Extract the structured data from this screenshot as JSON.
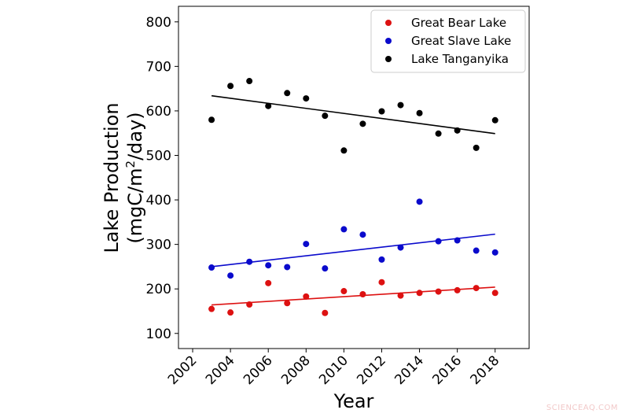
{
  "chart_data": {
    "type": "scatter",
    "title": "",
    "xlabel": "Year",
    "ylabel_line1": "Lake Production",
    "ylabel_line2": "(mgC/m",
    "ylabel_sup": "2",
    "ylabel_line2_end": "/day)",
    "xlim": [
      2001.25,
      2019.8
    ],
    "ylim": [
      66,
      835
    ],
    "xticks": [
      2002,
      2004,
      2006,
      2008,
      2010,
      2012,
      2014,
      2016,
      2018
    ],
    "yticks": [
      100,
      200,
      300,
      400,
      500,
      600,
      700,
      800
    ],
    "grid": false,
    "legend_placement": "top-right",
    "x": [
      2003,
      2004,
      2005,
      2006,
      2007,
      2008,
      2009,
      2010,
      2011,
      2012,
      2013,
      2014,
      2015,
      2016,
      2017,
      2018
    ],
    "series": [
      {
        "name": "Great Bear Lake",
        "color": "#dd1111",
        "values": [
          155,
          147,
          165,
          213,
          168,
          183,
          146,
          195,
          188,
          215,
          185,
          191,
          194,
          197,
          202,
          191
        ],
        "trend": [
          [
            2003,
            164
          ],
          [
            2018,
            204
          ]
        ]
      },
      {
        "name": "Great Slave Lake",
        "color": "#0a0acc",
        "values": [
          248,
          230,
          261,
          253,
          249,
          301,
          246,
          334,
          322,
          266,
          293,
          396,
          307,
          309,
          286,
          282
        ],
        "trend": [
          [
            2003,
            250
          ],
          [
            2018,
            323
          ]
        ]
      },
      {
        "name": "Lake Tanganyika",
        "color": "#000000",
        "values": [
          580,
          656,
          667,
          611,
          640,
          628,
          589,
          511,
          571,
          599,
          613,
          595,
          549,
          556,
          517,
          579
        ],
        "trend": [
          [
            2003,
            634
          ],
          [
            2018,
            549
          ]
        ]
      }
    ]
  },
  "watermark": "SCIENCEAQ.COM"
}
